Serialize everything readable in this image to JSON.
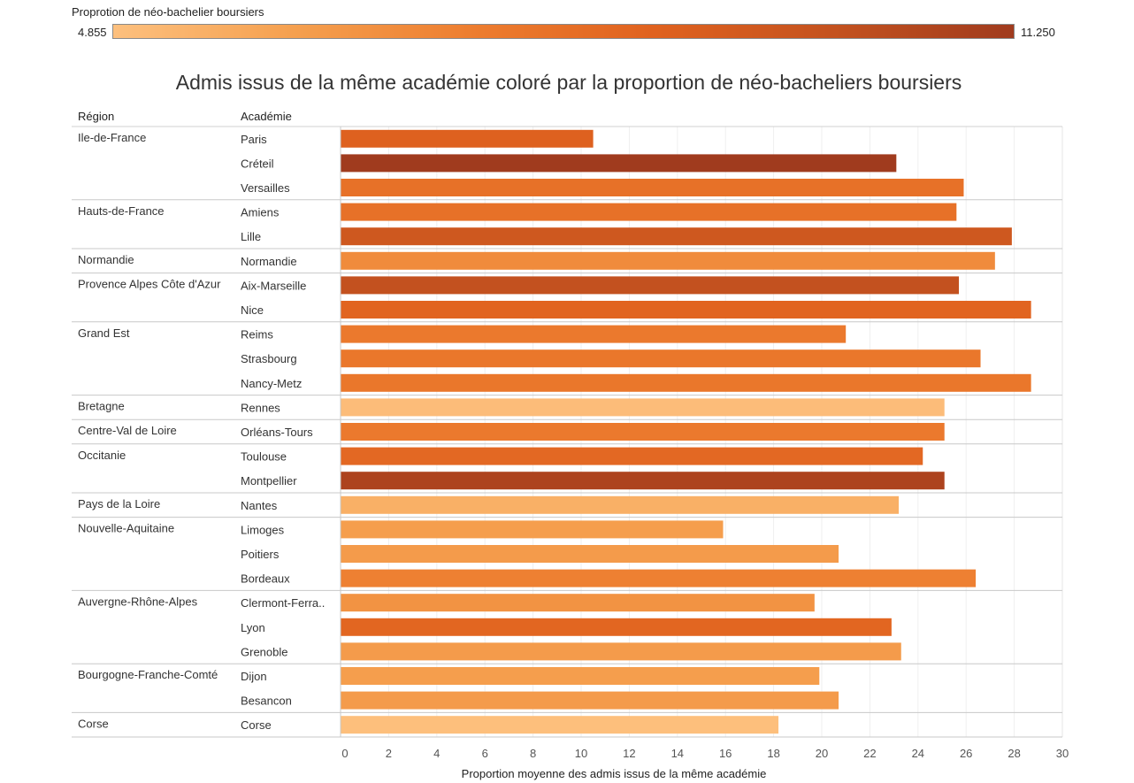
{
  "legend": {
    "title": "Proprotion de néo-bachelier boursiers",
    "min_label": "4.855",
    "max_label": "11.250",
    "gradient_colors": [
      "#fdc07e",
      "#f5a04f",
      "#ed7d2f",
      "#e0621f",
      "#c4521f",
      "#a03b1e"
    ]
  },
  "headers": {
    "region": "Région",
    "academie": "Académie"
  },
  "chart_data": {
    "type": "bar",
    "orientation": "horizontal",
    "title": "Admis issus de la même académie coloré par la proportion de néo-bacheliers boursiers",
    "xlabel": "Proportion moyenne des admis issus de la même académie",
    "xlim": [
      0,
      30
    ],
    "xticks": [
      0,
      2,
      4,
      6,
      8,
      10,
      12,
      14,
      16,
      18,
      20,
      22,
      24,
      26,
      28,
      30
    ],
    "color_scale": {
      "title": "Proprotion de néo-bachelier boursiers",
      "min": 4.855,
      "max": 11.25
    },
    "regions": [
      {
        "name": "Ile-de-France",
        "academies": [
          {
            "name": "Paris",
            "value": 10.5,
            "color_value": 8.8
          },
          {
            "name": "Créteil",
            "value": 23.1,
            "color_value": 11.25
          },
          {
            "name": "Versailles",
            "value": 25.9,
            "color_value": 8.0
          }
        ]
      },
      {
        "name": "Hauts-de-France",
        "academies": [
          {
            "name": "Amiens",
            "value": 25.6,
            "color_value": 8.0
          },
          {
            "name": "Lille",
            "value": 27.9,
            "color_value": 9.5
          }
        ]
      },
      {
        "name": "Normandie",
        "academies": [
          {
            "name": "Normandie",
            "value": 27.2,
            "color_value": 6.9
          }
        ]
      },
      {
        "name": "Provence Alpes Côte d'Azur",
        "academies": [
          {
            "name": "Aix-Marseille",
            "value": 25.7,
            "color_value": 10.0
          },
          {
            "name": "Nice",
            "value": 28.7,
            "color_value": 8.6
          }
        ]
      },
      {
        "name": "Grand Est",
        "academies": [
          {
            "name": "Reims",
            "value": 21.0,
            "color_value": 7.6
          },
          {
            "name": "Strasbourg",
            "value": 26.6,
            "color_value": 7.7
          },
          {
            "name": "Nancy-Metz",
            "value": 28.7,
            "color_value": 7.7
          }
        ]
      },
      {
        "name": "Bretagne",
        "academies": [
          {
            "name": "Rennes",
            "value": 25.1,
            "color_value": 5.0
          }
        ]
      },
      {
        "name": "Centre-Val de Loire",
        "academies": [
          {
            "name": "Orléans-Tours",
            "value": 25.1,
            "color_value": 7.6
          }
        ]
      },
      {
        "name": "Occitanie",
        "academies": [
          {
            "name": "Toulouse",
            "value": 24.2,
            "color_value": 8.4
          },
          {
            "name": "Montpellier",
            "value": 25.1,
            "color_value": 10.8
          }
        ]
      },
      {
        "name": "Pays de la Loire",
        "academies": [
          {
            "name": "Nantes",
            "value": 23.2,
            "color_value": 5.5
          }
        ]
      },
      {
        "name": "Nouvelle-Aquitaine",
        "academies": [
          {
            "name": "Limoges",
            "value": 15.9,
            "color_value": 6.2
          },
          {
            "name": "Poitiers",
            "value": 20.7,
            "color_value": 6.3
          },
          {
            "name": "Bordeaux",
            "value": 26.4,
            "color_value": 7.3
          }
        ]
      },
      {
        "name": "Auvergne-Rhône-Alpes",
        "academies": [
          {
            "name": "Clermont-Ferra..",
            "value": 19.7,
            "color_value": 6.6
          },
          {
            "name": "Lyon",
            "value": 22.9,
            "color_value": 8.5
          },
          {
            "name": "Grenoble",
            "value": 23.3,
            "color_value": 6.3
          }
        ]
      },
      {
        "name": "Bourgogne-Franche-Comté",
        "academies": [
          {
            "name": "Dijon",
            "value": 19.9,
            "color_value": 6.2
          },
          {
            "name": "Besancon",
            "value": 20.7,
            "color_value": 6.3
          }
        ]
      },
      {
        "name": "Corse",
        "academies": [
          {
            "name": "Corse",
            "value": 18.2,
            "color_value": 4.9
          }
        ]
      }
    ]
  }
}
